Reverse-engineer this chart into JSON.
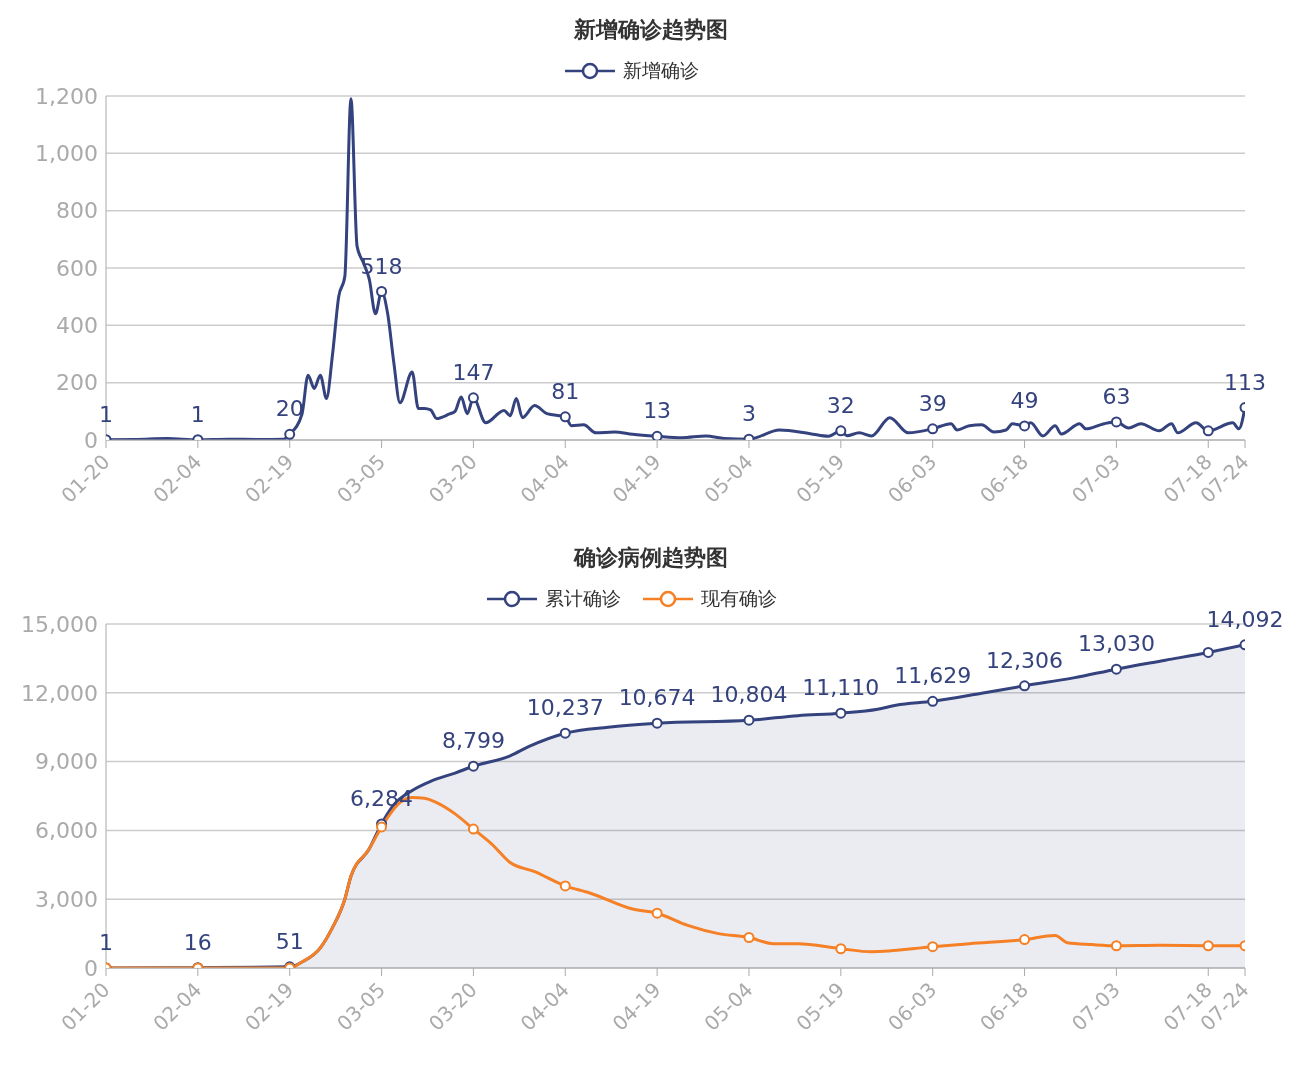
{
  "chart_data": [
    {
      "type": "line",
      "title": "新增确诊趋势图",
      "legend": "top",
      "grid": "y",
      "line_style": "solid",
      "xlim": [
        "--01-20",
        "--07-24"
      ],
      "xticks": [
        {
          "value": "--01-20",
          "label": "01-20"
        },
        {
          "value": "--02-04",
          "label": "02-04"
        },
        {
          "value": "--02-19",
          "label": "02-19"
        },
        {
          "value": "--03-05",
          "label": "03-05"
        },
        {
          "value": "--03-20",
          "label": "03-20"
        },
        {
          "value": "--04-04",
          "label": "04-04"
        },
        {
          "value": "--04-19",
          "label": "04-19"
        },
        {
          "value": "--05-04",
          "label": "05-04"
        },
        {
          "value": "--05-19",
          "label": "05-19"
        },
        {
          "value": "--06-03",
          "label": "06-03"
        },
        {
          "value": "--06-18",
          "label": "06-18"
        },
        {
          "value": "--07-03",
          "label": "07-03"
        },
        {
          "value": "--07-18",
          "label": "07-18"
        },
        {
          "value": "--07-24",
          "label": "07-24"
        }
      ],
      "ylim": [
        0,
        1200
      ],
      "yticks": [
        0,
        200,
        400,
        600,
        800,
        {
          "value": 1000,
          "label": "1,000"
        },
        {
          "value": 1200,
          "label": "1,200"
        }
      ],
      "series": [
        {
          "name": "新增确诊",
          "color": "#34427d",
          "x": [
            "--01-20",
            "--01-25",
            "--01-30",
            "--02-04",
            "--02-09",
            "--02-14",
            "--02-18",
            "--02-19",
            "--02-21",
            "--02-22",
            "--02-23",
            "--02-24",
            "--02-25",
            "--02-26",
            "--02-27",
            "--02-28",
            "--02-29",
            "--03-01",
            "--03-02",
            "--03-03",
            "--03-04",
            "--03-05",
            "--03-06",
            "--03-07",
            "--03-08",
            "--03-10",
            "--03-11",
            "--03-12",
            "--03-13",
            "--03-14",
            "--03-16",
            "--03-17",
            "--03-18",
            "--03-19",
            "--03-20",
            "--03-22",
            "--03-25",
            "--03-26",
            "--03-27",
            "--03-28",
            "--03-30",
            "--04-01",
            "--04-04",
            "--04-05",
            "--04-07",
            "--04-09",
            "--04-12",
            "--04-15",
            "--04-19",
            "--04-23",
            "--04-27",
            "--04-30",
            "--05-04",
            "--05-09",
            "--05-14",
            "--05-17",
            "--05-19",
            "--05-20",
            "--05-22",
            "--05-24",
            "--05-27",
            "--05-30",
            "--06-03",
            "--06-06",
            "--06-07",
            "--06-09",
            "--06-11",
            "--06-13",
            "--06-15",
            "--06-16",
            "--06-18",
            "--06-19",
            "--06-21",
            "--06-23",
            "--06-24",
            "--06-27",
            "--06-28",
            "--07-01",
            "--07-03",
            "--07-05",
            "--07-07",
            "--07-10",
            "--07-12",
            "--07-13",
            "--07-16",
            "--07-18",
            "--07-22",
            "--07-23",
            "--07-24"
          ],
          "values": [
            1,
            2,
            5,
            1,
            3,
            2,
            3,
            20,
            90,
            226,
            180,
            226,
            145,
            300,
            500,
            570,
            1190,
            676,
            620,
            560,
            440,
            518,
            440,
            270,
            130,
            237,
            110,
            110,
            105,
            75,
            90,
            100,
            150,
            92,
            147,
            60,
            103,
            85,
            145,
            78,
            120,
            92,
            81,
            50,
            53,
            25,
            28,
            20,
            13,
            8,
            14,
            5,
            3,
            35,
            22,
            13,
            32,
            15,
            25,
            14,
            78,
            25,
            39,
            57,
            35,
            50,
            53,
            28,
            35,
            57,
            49,
            60,
            14,
            50,
            21,
            57,
            39,
            57,
            63,
            42,
            57,
            32,
            57,
            25,
            60,
            32,
            60,
            39,
            113
          ],
          "value_labels": [
            "1",
            null,
            null,
            "1",
            null,
            null,
            null,
            "20",
            null,
            null,
            null,
            null,
            null,
            null,
            null,
            null,
            null,
            null,
            null,
            null,
            null,
            "518",
            null,
            null,
            null,
            null,
            null,
            null,
            null,
            null,
            null,
            null,
            null,
            null,
            "147",
            null,
            null,
            null,
            null,
            null,
            null,
            null,
            "81",
            null,
            null,
            null,
            null,
            null,
            "13",
            null,
            null,
            null,
            "3",
            null,
            null,
            null,
            "32",
            null,
            null,
            null,
            null,
            null,
            "39",
            null,
            null,
            null,
            null,
            null,
            null,
            null,
            "49",
            null,
            null,
            null,
            null,
            null,
            null,
            null,
            "63",
            null,
            null,
            null,
            null,
            null,
            null,
            null,
            null,
            null,
            "113"
          ]
        }
      ]
    },
    {
      "type": "line",
      "title": "确诊病例趋势图",
      "legend": "top",
      "grid": "y",
      "line_style": "solid",
      "xlim": [
        "--01-20",
        "--07-24"
      ],
      "xticks": [
        {
          "value": "--01-20",
          "label": "01-20"
        },
        {
          "value": "--02-04",
          "label": "02-04"
        },
        {
          "value": "--02-19",
          "label": "02-19"
        },
        {
          "value": "--03-05",
          "label": "03-05"
        },
        {
          "value": "--03-20",
          "label": "03-20"
        },
        {
          "value": "--04-04",
          "label": "04-04"
        },
        {
          "value": "--04-19",
          "label": "04-19"
        },
        {
          "value": "--05-04",
          "label": "05-04"
        },
        {
          "value": "--05-19",
          "label": "05-19"
        },
        {
          "value": "--06-03",
          "label": "06-03"
        },
        {
          "value": "--06-18",
          "label": "06-18"
        },
        {
          "value": "--07-03",
          "label": "07-03"
        },
        {
          "value": "--07-18",
          "label": "07-18"
        },
        {
          "value": "--07-24",
          "label": "07-24"
        }
      ],
      "ylim": [
        0,
        15000
      ],
      "yticks": [
        0,
        {
          "value": 3000,
          "label": "3,000"
        },
        {
          "value": 6000,
          "label": "6,000"
        },
        {
          "value": 9000,
          "label": "9,000"
        },
        {
          "value": 12000,
          "label": "12,000"
        },
        {
          "value": 15000,
          "label": "15,000"
        }
      ],
      "series": [
        {
          "name": "累计确诊",
          "type": "area",
          "color": "#34427d",
          "x": [
            "--01-20",
            "--02-04",
            "--02-19",
            "--02-21",
            "--02-24",
            "--02-26",
            "--02-28",
            "--02-29",
            "--03-03",
            "--03-05",
            "--03-07",
            "--03-10",
            "--03-13",
            "--03-17",
            "--03-20",
            "--03-26",
            "--03-29",
            "--04-04",
            "--04-11",
            "--04-19",
            "--05-04",
            "--05-12",
            "--05-19",
            "--05-25",
            "--05-28",
            "--06-03",
            "--06-11",
            "--06-18",
            "--06-26",
            "--07-03",
            "--07-11",
            "--07-18",
            "--07-24"
          ],
          "values": [
            1,
            16,
            51,
            260,
            880,
            1770,
            3000,
            4000,
            5200,
            6284,
            7120,
            7740,
            8140,
            8500,
            8799,
            9250,
            9650,
            10237,
            10500,
            10674,
            10804,
            11000,
            11110,
            11280,
            11460,
            11629,
            11980,
            12306,
            12650,
            13030,
            13420,
            13760,
            14092
          ],
          "value_labels": [
            "1",
            "16",
            "51",
            null,
            null,
            null,
            null,
            null,
            null,
            "6,284",
            null,
            null,
            null,
            null,
            "8,799",
            null,
            null,
            "10,237",
            null,
            "10,674",
            "10,804",
            null,
            "11,110",
            null,
            null,
            "11,629",
            null,
            "12,306",
            null,
            "13,030",
            null,
            null,
            "14,092"
          ]
        },
        {
          "name": "现有确诊",
          "color": "#f58025",
          "x": [
            "--01-20",
            "--02-04",
            "--02-19",
            "--02-21",
            "--02-24",
            "--02-26",
            "--02-28",
            "--02-29",
            "--03-03",
            "--03-05",
            "--03-08",
            "--03-10",
            "--03-12",
            "--03-14",
            "--03-17",
            "--03-20",
            "--03-23",
            "--03-26",
            "--03-30",
            "--04-04",
            "--04-08",
            "--04-15",
            "--04-19",
            "--04-24",
            "--04-29",
            "--05-04",
            "--05-08",
            "--05-12",
            "--05-19",
            "--05-24",
            "--06-03",
            "--06-09",
            "--06-18",
            "--06-23",
            "--06-25",
            "--06-29",
            "--07-03",
            "--07-10",
            "--07-18",
            "--07-24"
          ],
          "values": [
            0,
            0,
            0,
            260,
            880,
            1770,
            3000,
            4000,
            5200,
            6150,
            7210,
            7430,
            7400,
            7210,
            6720,
            6060,
            5400,
            4600,
            4200,
            3580,
            3270,
            2570,
            2390,
            1860,
            1500,
            1330,
            1060,
            1060,
            840,
            710,
            930,
            1060,
            1240,
            1420,
            1100,
            1020,
            970,
            990,
            970,
            970
          ]
        }
      ]
    }
  ]
}
